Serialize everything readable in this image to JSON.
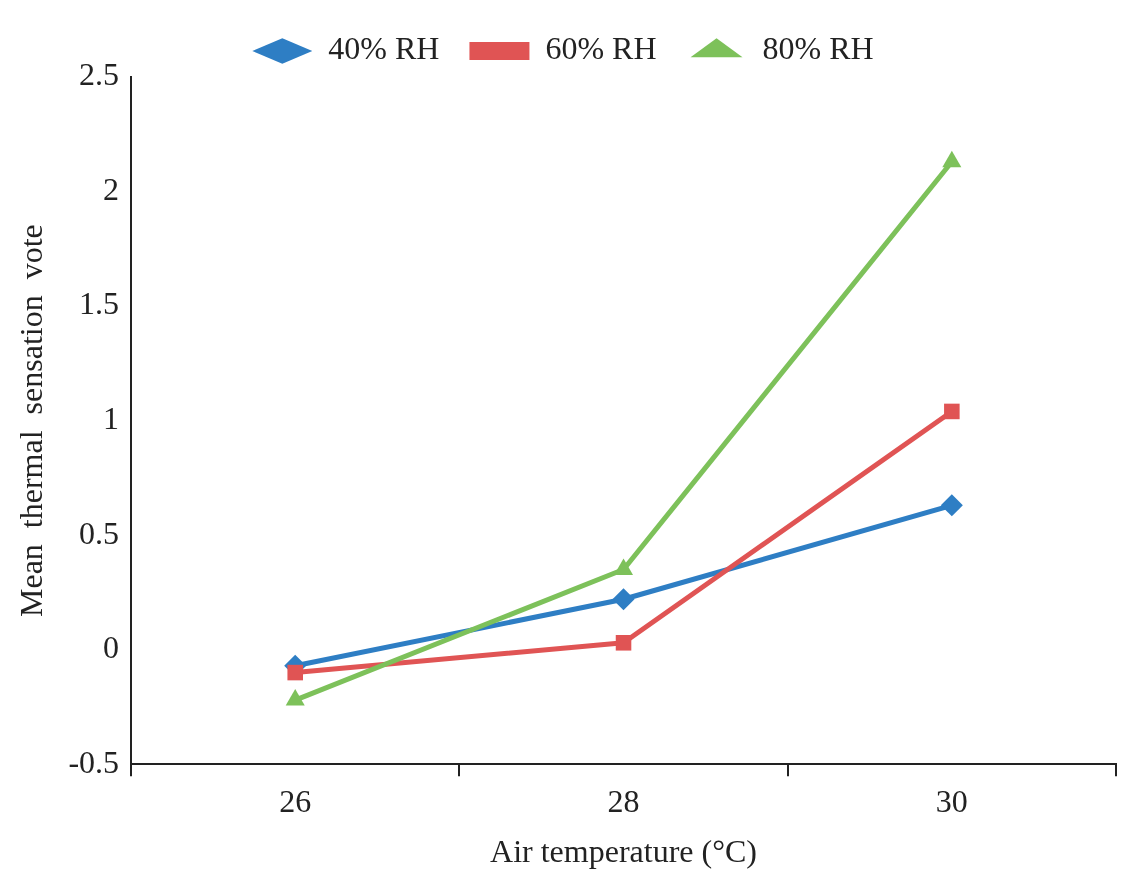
{
  "chart_data": {
    "type": "line",
    "xlabel": "Air temperature (°C)",
    "ylabel": "Mean  thermal  sensation  vote",
    "categories": [
      "26",
      "28",
      "30"
    ],
    "series": [
      {
        "name": "40% RH",
        "color": "#2e7ec4",
        "marker": "diamond",
        "values": [
          -0.07,
          0.22,
          0.63
        ]
      },
      {
        "name": "60% RH",
        "color": "#e05454",
        "marker": "square",
        "values": [
          -0.1,
          0.03,
          1.04
        ]
      },
      {
        "name": "80% RH",
        "color": "#7dc15a",
        "marker": "triangle",
        "values": [
          -0.22,
          0.35,
          2.13
        ]
      }
    ],
    "ylim": [
      -0.5,
      2.5
    ],
    "yticks": [
      -0.5,
      0,
      0.5,
      1,
      1.5,
      2,
      2.5
    ],
    "grid": false,
    "legend": "top"
  }
}
